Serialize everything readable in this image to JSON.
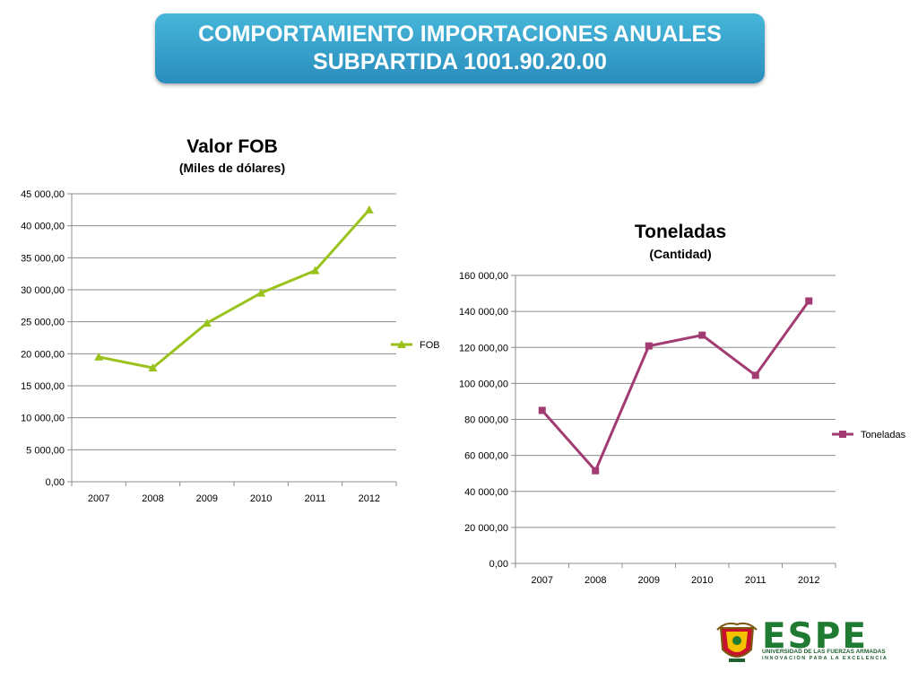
{
  "header": {
    "line1": "COMPORTAMIENTO IMPORTACIONES ANUALES",
    "line2": "SUBPARTIDA 1001.90.20.00",
    "color_top": "#46b6d9",
    "color_bottom": "#2a8dbd"
  },
  "chart_data": [
    {
      "type": "line",
      "title": "Valor FOB",
      "subtitle": "(Miles de dólares)",
      "categories": [
        "2007",
        "2008",
        "2009",
        "2010",
        "2011",
        "2012"
      ],
      "series": [
        {
          "name": "FOB",
          "values": [
            19500,
            17800,
            24800,
            29500,
            33000,
            42500
          ],
          "color": "#99c31c",
          "marker": "triangle"
        }
      ],
      "ylim": [
        0,
        45000
      ],
      "ytick_step": 5000,
      "ytick_labels": [
        "0,00",
        "5 000,00",
        "10 000,00",
        "15 000,00",
        "20 000,00",
        "25 000,00",
        "30 000,00",
        "35 000,00",
        "40 000,00",
        "45 000,00"
      ],
      "grid": true,
      "legend_position": "right"
    },
    {
      "type": "line",
      "title": "Toneladas",
      "subtitle": "(Cantidad)",
      "categories": [
        "2007",
        "2008",
        "2009",
        "2010",
        "2011",
        "2012"
      ],
      "series": [
        {
          "name": "Toneladas",
          "values": [
            85000,
            51500,
            120800,
            126800,
            104500,
            145800
          ],
          "color": "#a13b72",
          "marker": "square"
        }
      ],
      "ylim": [
        0,
        160000
      ],
      "ytick_step": 20000,
      "ytick_labels": [
        "0,00",
        "20 000,00",
        "40 000,00",
        "60 000,00",
        "80 000,00",
        "100 000,00",
        "120 000,00",
        "140 000,00",
        "160 000,00"
      ],
      "grid": true,
      "legend_position": "right"
    }
  ],
  "logo": {
    "name": "ESPE",
    "subtitle": "UNIVERSIDAD DE LAS FUERZAS ARMADAS",
    "tagline": "INNOVACIÓN PARA LA EXCELENCIA"
  }
}
